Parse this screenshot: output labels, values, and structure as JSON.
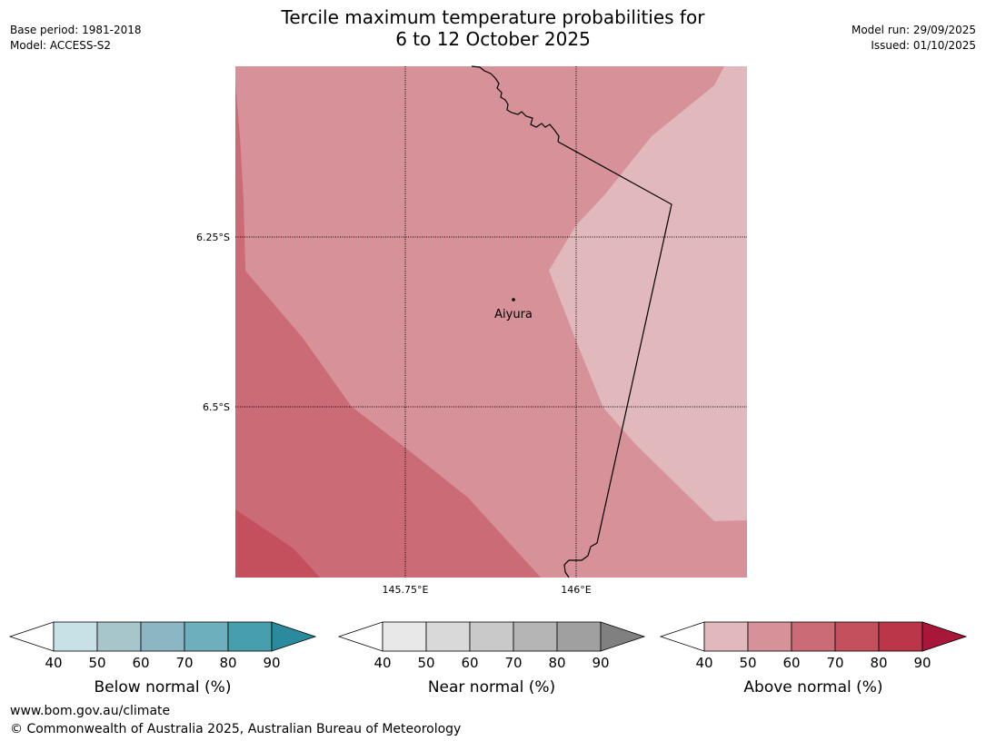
{
  "header": {
    "title_line1": "Tercile maximum temperature probabilities for",
    "title_line2": "6 to 12 October 2025",
    "base_period": "Base period: 1981-2018",
    "model": "Model: ACCESS-S2",
    "model_run": "Model run: 29/09/2025",
    "issued": "Issued: 01/10/2025"
  },
  "map": {
    "lat_labels": [
      "6.25°S",
      "6.5°S"
    ],
    "lon_labels": [
      "145.75°E",
      "146°E"
    ],
    "place": "Aiyura"
  },
  "legends": [
    {
      "title": "Below normal (%)",
      "ticks": [
        "40",
        "50",
        "60",
        "70",
        "80",
        "90"
      ],
      "colors": [
        "#ffffff",
        "#c8e1e6",
        "#a6c6cc",
        "#8ab7c3",
        "#6eafbd",
        "#479fae",
        "#2a8b9c"
      ]
    },
    {
      "title": "Near normal (%)",
      "ticks": [
        "40",
        "50",
        "60",
        "70",
        "80",
        "90"
      ],
      "colors": [
        "#ffffff",
        "#e8e8e8",
        "#d9d9d9",
        "#c9c9c9",
        "#b5b5b5",
        "#a0a0a0",
        "#808080"
      ]
    },
    {
      "title": "Above normal (%)",
      "ticks": [
        "40",
        "50",
        "60",
        "70",
        "80",
        "90"
      ],
      "colors": [
        "#ffffff",
        "#e1b9bd",
        "#d69199",
        "#cb6b76",
        "#c4505e",
        "#bc364a",
        "#a8173a"
      ]
    }
  ],
  "footer": {
    "url": "www.bom.gov.au/climate",
    "copyright": "© Commonwealth of Australia 2025, Australian Bureau of Meteorology"
  }
}
